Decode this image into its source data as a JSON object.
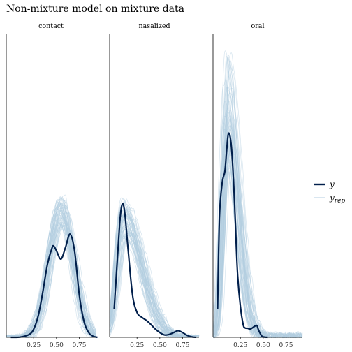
{
  "chart_data": {
    "type": "line",
    "title": "Non-mixture model on mixture data",
    "panels": [
      {
        "name": "contact",
        "y": {
          "x": [
            0.0,
            0.1,
            0.2,
            0.25,
            0.3,
            0.35,
            0.4,
            0.45,
            0.47,
            0.5,
            0.55,
            0.6,
            0.65,
            0.7,
            0.75,
            0.8,
            0.85,
            0.9,
            0.95
          ],
          "density": [
            0.0,
            0.01,
            0.12,
            0.34,
            0.9,
            1.9,
            3.05,
            3.75,
            3.85,
            3.65,
            3.3,
            3.8,
            4.35,
            3.6,
            1.8,
            0.7,
            0.22,
            0.05,
            0.0
          ]
        },
        "y_rep_peak_range": [
          4.6,
          6.0
        ],
        "y_rep_center": 0.56
      },
      {
        "name": "nasalized",
        "y": {
          "x": [
            0.0,
            0.03,
            0.06,
            0.08,
            0.1,
            0.12,
            0.15,
            0.2,
            0.25,
            0.3,
            0.35,
            0.4,
            0.45,
            0.5,
            0.55,
            0.6,
            0.65,
            0.7,
            0.75,
            0.8,
            0.85,
            0.9
          ],
          "density": [
            1.2,
            3.0,
            4.8,
            5.5,
            5.6,
            5.1,
            3.8,
            1.8,
            1.05,
            0.85,
            0.72,
            0.55,
            0.35,
            0.2,
            0.1,
            0.12,
            0.2,
            0.28,
            0.2,
            0.08,
            0.02,
            0.0
          ]
        },
        "y_rep_peak_range": [
          4.2,
          5.8
        ],
        "y_rep_center": 0.12
      },
      {
        "name": "oral",
        "y": {
          "x": [
            0.0,
            0.02,
            0.05,
            0.08,
            0.1,
            0.12,
            0.15,
            0.18,
            0.2,
            0.22,
            0.25,
            0.28,
            0.3,
            0.33,
            0.36,
            0.4,
            0.43,
            0.45,
            0.48,
            0.5,
            0.55
          ],
          "density": [
            1.2,
            5.0,
            6.5,
            7.0,
            7.9,
            8.6,
            8.1,
            6.2,
            4.3,
            2.6,
            1.3,
            0.55,
            0.4,
            0.38,
            0.35,
            0.45,
            0.5,
            0.3,
            0.08,
            0.02,
            0.0
          ]
        },
        "y_rep_peak_range": [
          7.0,
          12.0
        ],
        "y_rep_center": 0.11
      }
    ],
    "xlim": [
      -0.05,
      0.93
    ],
    "ylim": [
      0,
      12.8
    ],
    "x_ticks": [
      0.25,
      0.5,
      0.75
    ],
    "x_tick_labels": [
      "0.25",
      "0.50",
      "0.75"
    ],
    "y_axis_visible": false,
    "grid": false,
    "legend": {
      "placement": "right",
      "entries": [
        {
          "symbol": "y",
          "subscript": "",
          "color": "#011f4b",
          "style": "thick"
        },
        {
          "symbol": "y",
          "subscript": "rep",
          "color": "#b3cde0",
          "style": "thin"
        }
      ]
    },
    "colors": {
      "y": "#011f4b",
      "y_rep": "#b3cde0"
    }
  }
}
